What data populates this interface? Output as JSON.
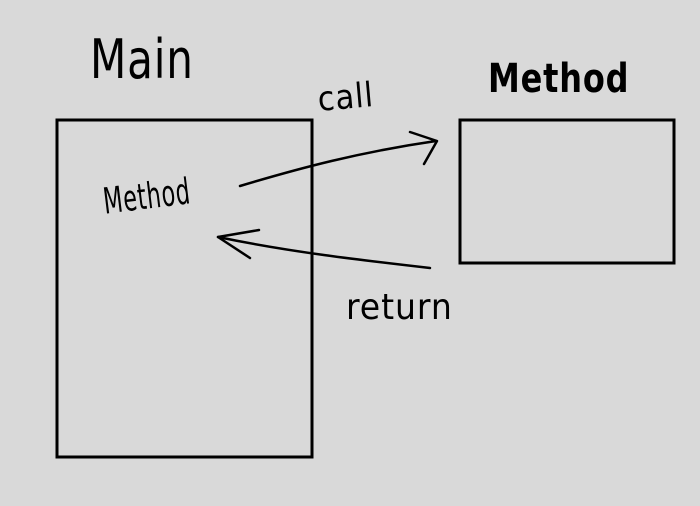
{
  "diagram": {
    "main_title": "Main",
    "method_title": "Method",
    "call_label": "call",
    "method_inner_label": "Method",
    "return_label": "return"
  },
  "colors": {
    "background": "#d9d9d9",
    "ink": "#000000"
  }
}
